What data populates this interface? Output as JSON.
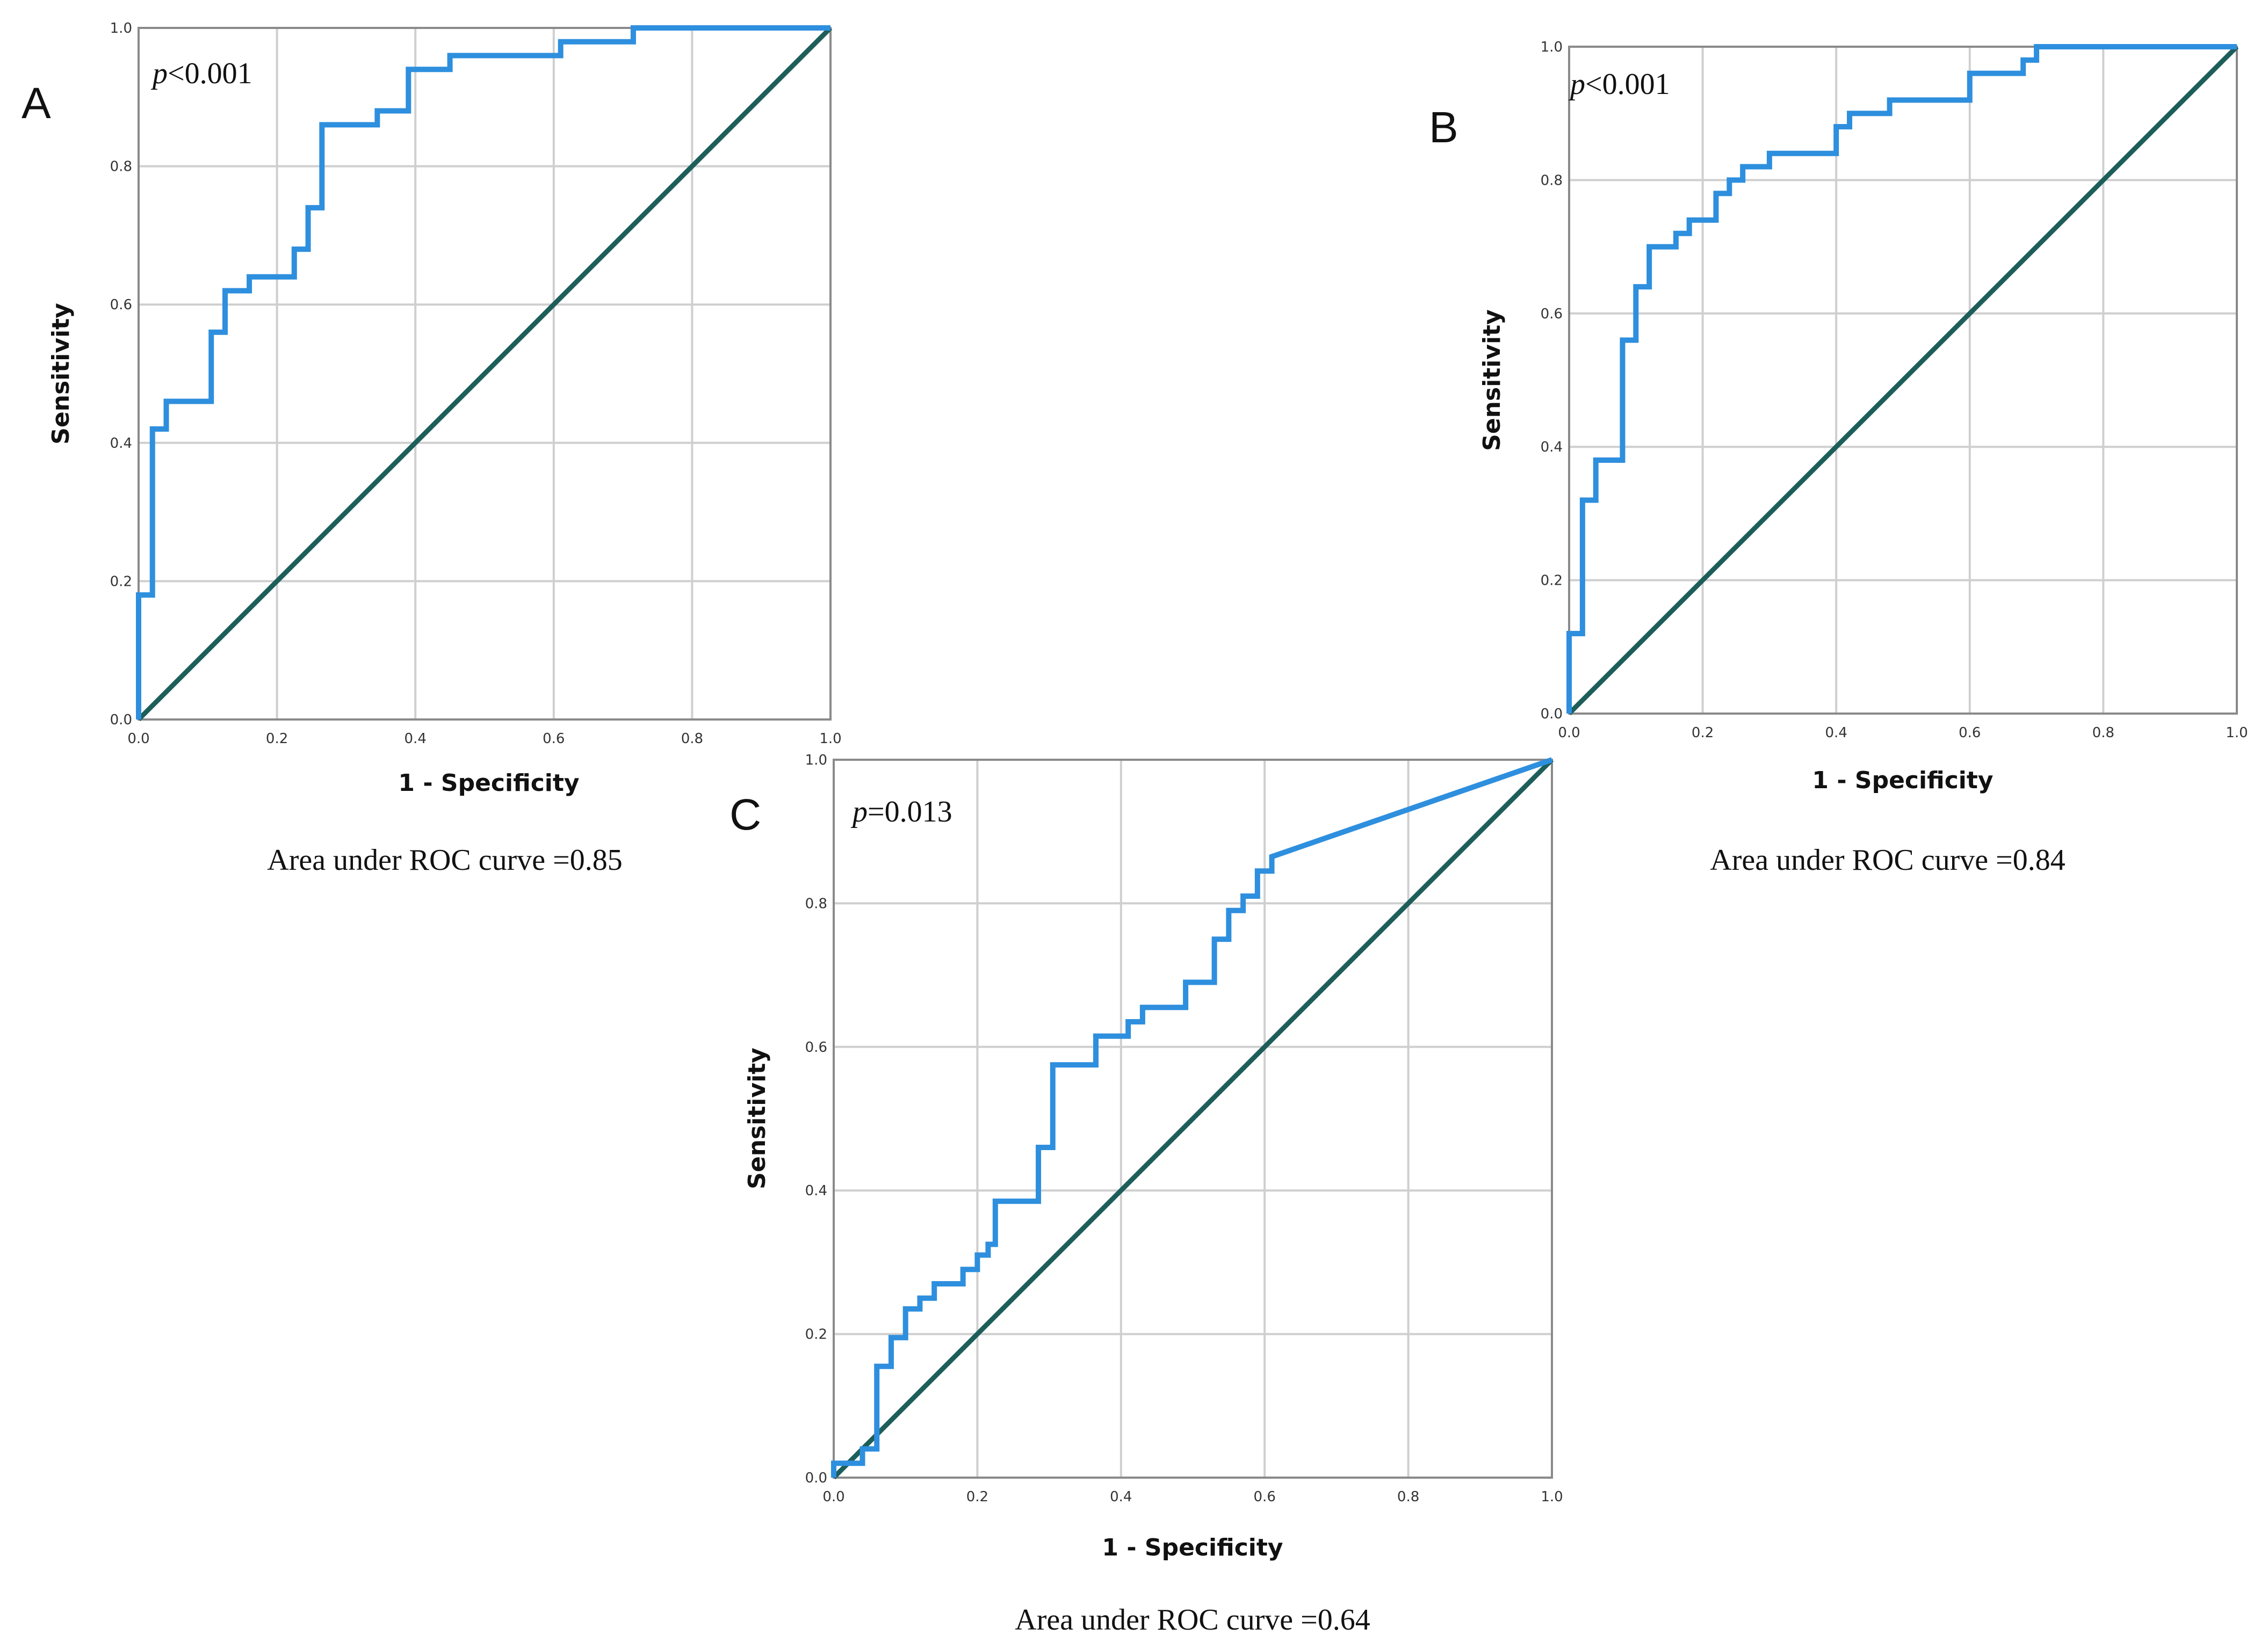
{
  "colors": {
    "roc": "#2e8fde",
    "reference": "#1d5e5a",
    "grid": "#cfcfcf",
    "frame": "#8a8a8a"
  },
  "chart_data": [
    {
      "type": "line",
      "panel": "A",
      "title": "",
      "p_label": "p",
      "p_value": "<0.001",
      "xlabel": "1 - Specificity",
      "ylabel": "Sensitivity",
      "xlim": [
        0,
        1
      ],
      "ylim": [
        0,
        1
      ],
      "xticks": [
        "0.0",
        "0.2",
        "0.4",
        "0.6",
        "0.8",
        "1.0"
      ],
      "yticks": [
        "0.0",
        "0.2",
        "0.4",
        "0.6",
        "0.8",
        "1.0"
      ],
      "auc_caption": "Area under ROC curve =0.85",
      "series": [
        {
          "name": "ROC",
          "points": [
            [
              0,
              0
            ],
            [
              0,
              0.18
            ],
            [
              0.02,
              0.18
            ],
            [
              0.02,
              0.42
            ],
            [
              0.04,
              0.42
            ],
            [
              0.04,
              0.46
            ],
            [
              0.105,
              0.46
            ],
            [
              0.105,
              0.56
            ],
            [
              0.125,
              0.56
            ],
            [
              0.125,
              0.62
            ],
            [
              0.16,
              0.62
            ],
            [
              0.16,
              0.64
            ],
            [
              0.225,
              0.64
            ],
            [
              0.225,
              0.68
            ],
            [
              0.245,
              0.68
            ],
            [
              0.245,
              0.74
            ],
            [
              0.265,
              0.74
            ],
            [
              0.265,
              0.86
            ],
            [
              0.345,
              0.86
            ],
            [
              0.345,
              0.88
            ],
            [
              0.39,
              0.88
            ],
            [
              0.39,
              0.94
            ],
            [
              0.45,
              0.94
            ],
            [
              0.45,
              0.96
            ],
            [
              0.61,
              0.96
            ],
            [
              0.61,
              0.98
            ],
            [
              0.715,
              0.98
            ],
            [
              0.715,
              1.0
            ],
            [
              1.0,
              1.0
            ]
          ]
        },
        {
          "name": "Reference",
          "points": [
            [
              0,
              0
            ],
            [
              1,
              1
            ]
          ]
        }
      ]
    },
    {
      "type": "line",
      "panel": "B",
      "title": "",
      "p_label": "p",
      "p_value": "<0.001",
      "xlabel": "1 - Specificity",
      "ylabel": "Sensitivity",
      "xlim": [
        0,
        1
      ],
      "ylim": [
        0,
        1
      ],
      "xticks": [
        "0.0",
        "0.2",
        "0.4",
        "0.6",
        "0.8",
        "1.0"
      ],
      "yticks": [
        "0.0",
        "0.2",
        "0.4",
        "0.6",
        "0.8",
        "1.0"
      ],
      "auc_caption": "Area under ROC curve =0.84",
      "series": [
        {
          "name": "ROC",
          "points": [
            [
              0,
              0
            ],
            [
              0,
              0.12
            ],
            [
              0.02,
              0.12
            ],
            [
              0.02,
              0.32
            ],
            [
              0.04,
              0.32
            ],
            [
              0.04,
              0.38
            ],
            [
              0.08,
              0.38
            ],
            [
              0.08,
              0.56
            ],
            [
              0.1,
              0.56
            ],
            [
              0.1,
              0.64
            ],
            [
              0.12,
              0.64
            ],
            [
              0.12,
              0.7
            ],
            [
              0.16,
              0.7
            ],
            [
              0.16,
              0.72
            ],
            [
              0.18,
              0.72
            ],
            [
              0.18,
              0.74
            ],
            [
              0.22,
              0.74
            ],
            [
              0.22,
              0.78
            ],
            [
              0.24,
              0.78
            ],
            [
              0.24,
              0.8
            ],
            [
              0.26,
              0.8
            ],
            [
              0.26,
              0.82
            ],
            [
              0.3,
              0.82
            ],
            [
              0.3,
              0.84
            ],
            [
              0.4,
              0.84
            ],
            [
              0.4,
              0.88
            ],
            [
              0.42,
              0.88
            ],
            [
              0.42,
              0.9
            ],
            [
              0.48,
              0.9
            ],
            [
              0.48,
              0.92
            ],
            [
              0.6,
              0.92
            ],
            [
              0.6,
              0.96
            ],
            [
              0.68,
              0.96
            ],
            [
              0.68,
              0.98
            ],
            [
              0.7,
              0.98
            ],
            [
              0.7,
              1.0
            ],
            [
              1.0,
              1.0
            ]
          ]
        },
        {
          "name": "Reference",
          "points": [
            [
              0,
              0
            ],
            [
              1,
              1
            ]
          ]
        }
      ]
    },
    {
      "type": "line",
      "panel": "C",
      "title": "",
      "p_label": "p",
      "p_value": "=0.013",
      "xlabel": "1 - Specificity",
      "ylabel": "Sensitivity",
      "xlim": [
        0,
        1
      ],
      "ylim": [
        0,
        1
      ],
      "xticks": [
        "0.0",
        "0.2",
        "0.4",
        "0.6",
        "0.8",
        "1.0"
      ],
      "yticks": [
        "0.0",
        "0.2",
        "0.4",
        "0.6",
        "0.8",
        "1.0"
      ],
      "auc_caption": "Area under ROC curve =0.64",
      "series": [
        {
          "name": "ROC",
          "points": [
            [
              0,
              0
            ],
            [
              0,
              0.02
            ],
            [
              0.04,
              0.02
            ],
            [
              0.04,
              0.04
            ],
            [
              0.06,
              0.04
            ],
            [
              0.06,
              0.155
            ],
            [
              0.08,
              0.155
            ],
            [
              0.08,
              0.195
            ],
            [
              0.1,
              0.195
            ],
            [
              0.1,
              0.235
            ],
            [
              0.12,
              0.235
            ],
            [
              0.12,
              0.25
            ],
            [
              0.14,
              0.25
            ],
            [
              0.14,
              0.27
            ],
            [
              0.18,
              0.27
            ],
            [
              0.18,
              0.29
            ],
            [
              0.2,
              0.29
            ],
            [
              0.2,
              0.31
            ],
            [
              0.215,
              0.31
            ],
            [
              0.215,
              0.325
            ],
            [
              0.225,
              0.325
            ],
            [
              0.225,
              0.385
            ],
            [
              0.285,
              0.385
            ],
            [
              0.285,
              0.46
            ],
            [
              0.305,
              0.46
            ],
            [
              0.305,
              0.575
            ],
            [
              0.365,
              0.575
            ],
            [
              0.365,
              0.615
            ],
            [
              0.41,
              0.615
            ],
            [
              0.41,
              0.635
            ],
            [
              0.43,
              0.635
            ],
            [
              0.43,
              0.655
            ],
            [
              0.49,
              0.655
            ],
            [
              0.49,
              0.69
            ],
            [
              0.53,
              0.69
            ],
            [
              0.53,
              0.75
            ],
            [
              0.55,
              0.75
            ],
            [
              0.55,
              0.79
            ],
            [
              0.57,
              0.79
            ],
            [
              0.57,
              0.81
            ],
            [
              0.59,
              0.81
            ],
            [
              0.59,
              0.845
            ],
            [
              0.61,
              0.845
            ],
            [
              0.61,
              0.865
            ],
            [
              1.0,
              1.0
            ]
          ]
        },
        {
          "name": "Reference",
          "points": [
            [
              0,
              0
            ],
            [
              1,
              1
            ]
          ]
        }
      ]
    }
  ]
}
